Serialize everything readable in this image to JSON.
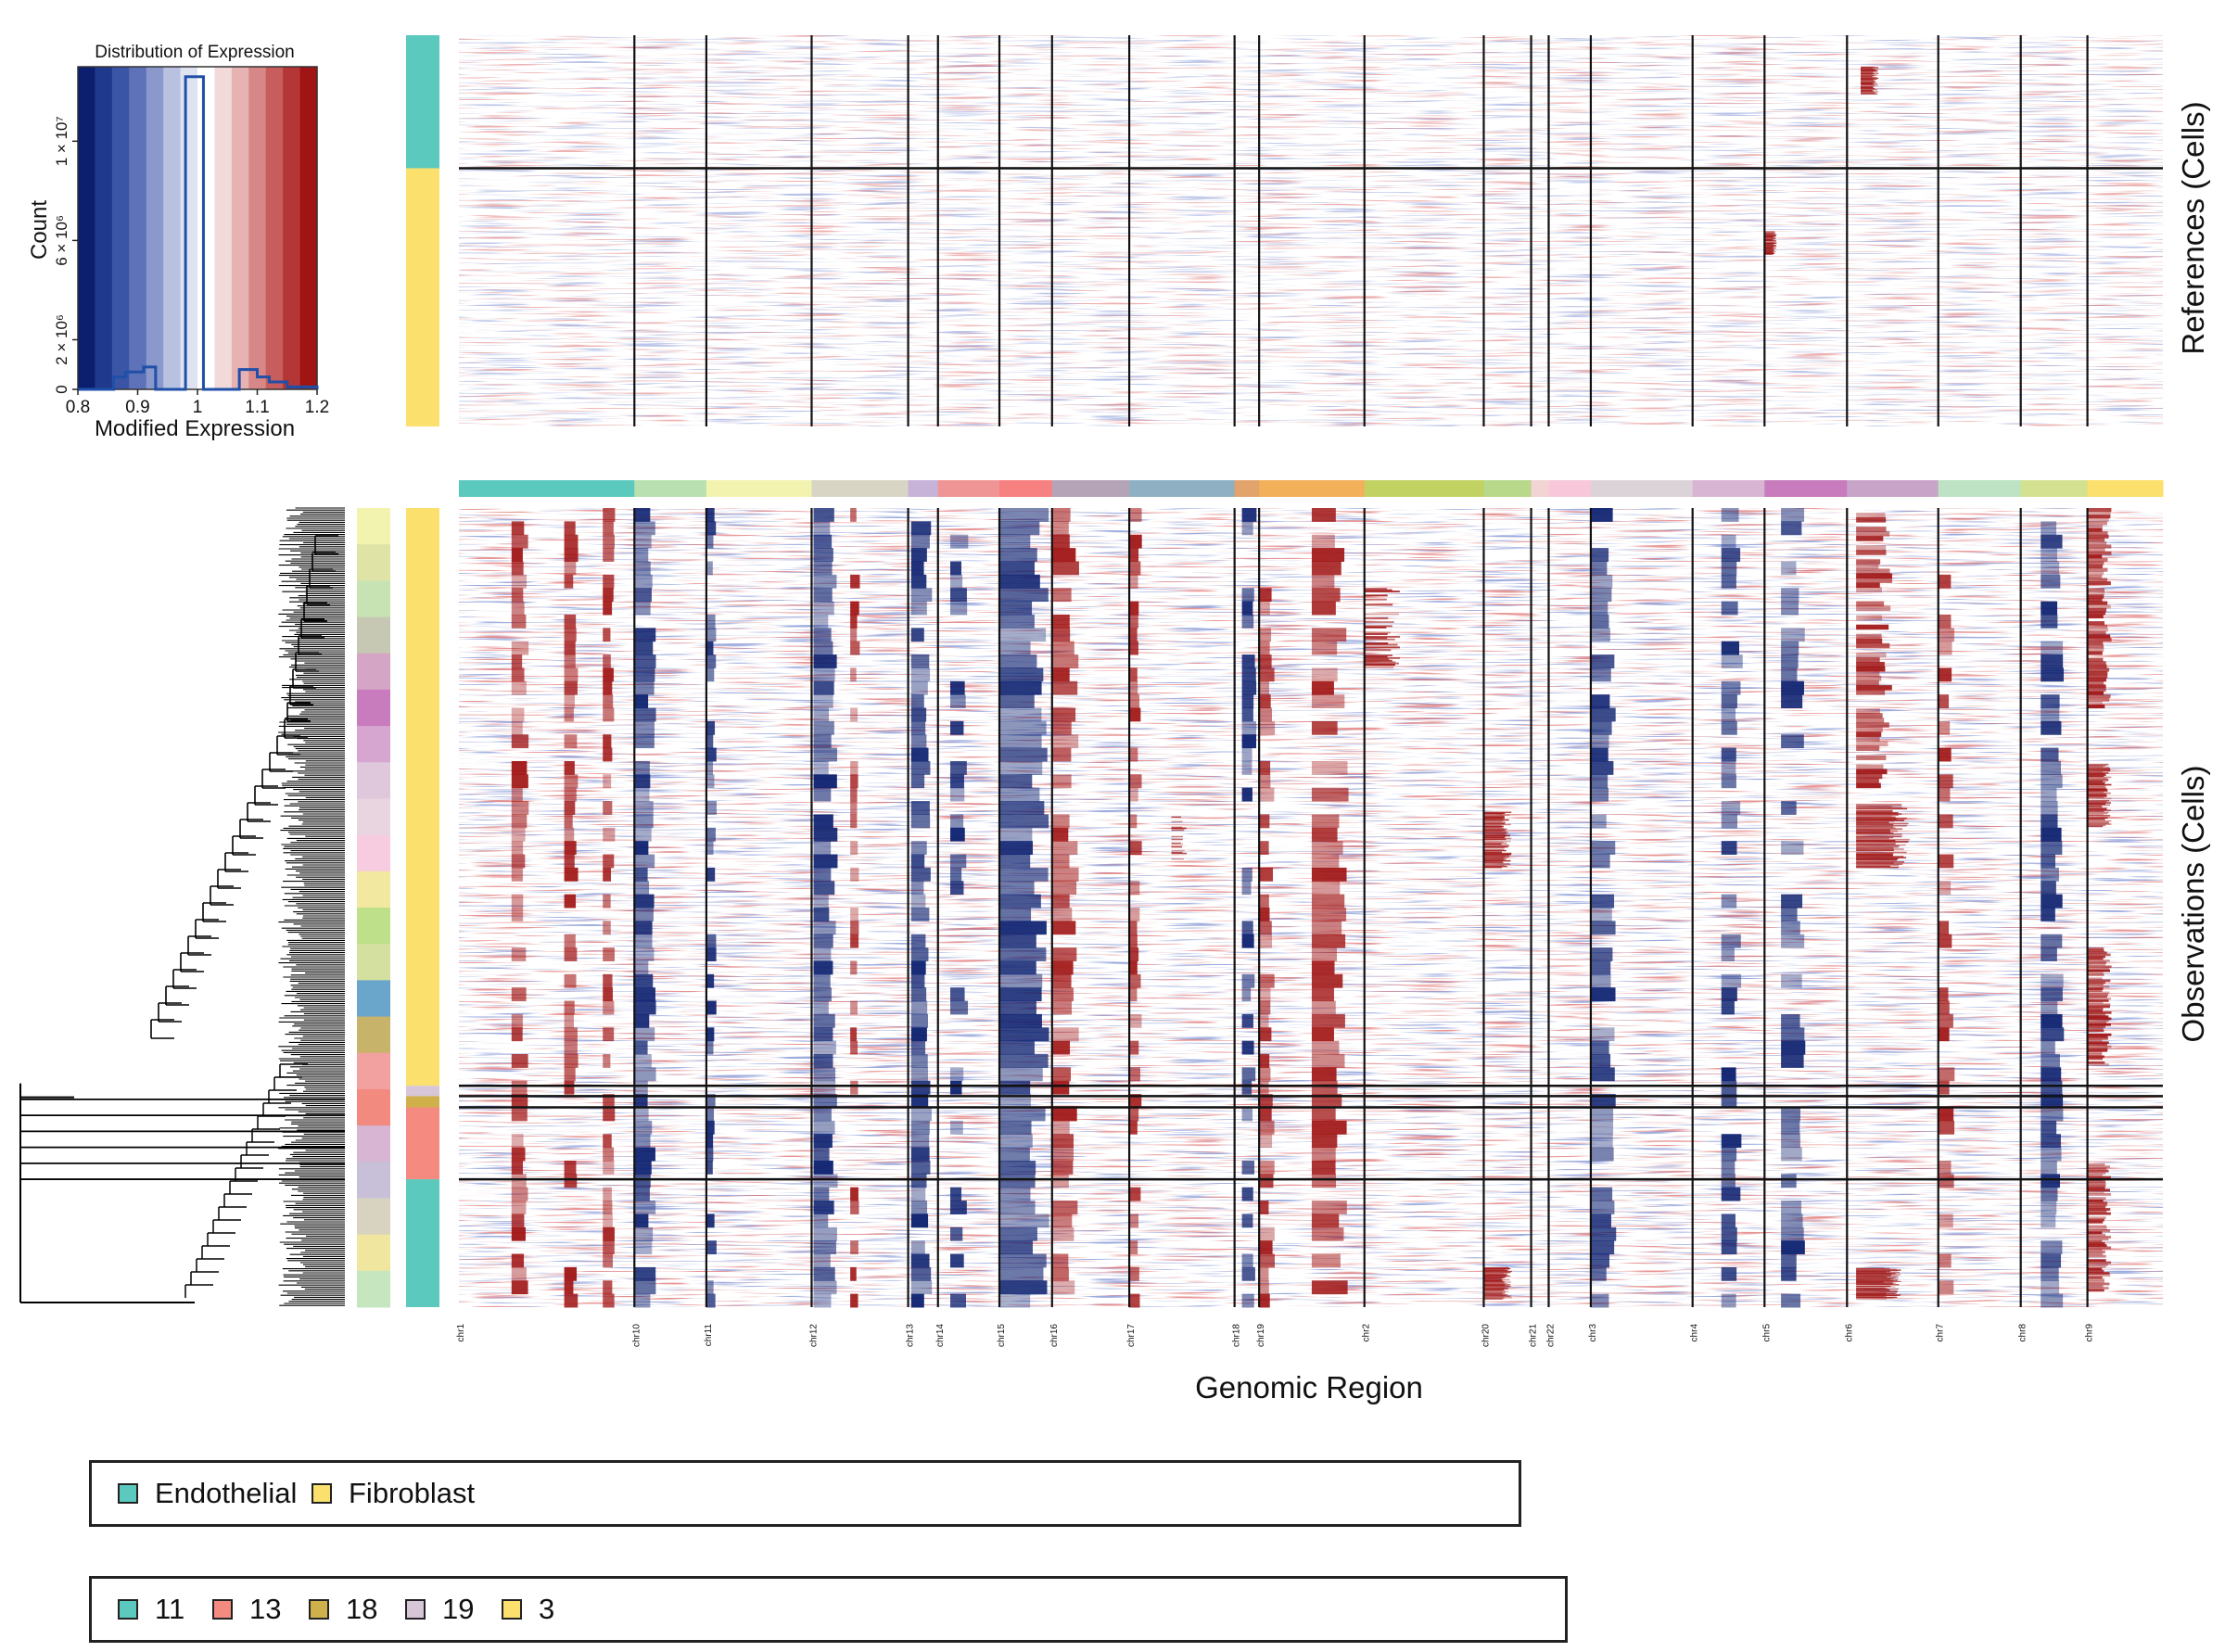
{
  "colors": {
    "low": "#0b1f6e",
    "mid": "#ffffff",
    "high": "#a01414",
    "line": "#111111",
    "inset_hist": "#1f4fa8"
  },
  "chart_data": [
    {
      "type": "histogram",
      "title": "Distribution of Expression",
      "xlabel": "Modified Expression",
      "ylabel": "Count",
      "xlim": [
        0.8,
        1.2
      ],
      "x_ticks": [
        "0.8",
        "0.9",
        "1",
        "1.1",
        "1.2"
      ],
      "y_ticks": [
        "0",
        "2 × 10⁶",
        "6 × 10⁶",
        "1 × 10⁷"
      ],
      "ylim": [
        0,
        13000000
      ],
      "bins": [
        {
          "x0": 0.8,
          "x1": 0.86,
          "count": 0
        },
        {
          "x0": 0.86,
          "x1": 0.88,
          "count": 500000
        },
        {
          "x0": 0.88,
          "x1": 0.91,
          "count": 700000
        },
        {
          "x0": 0.91,
          "x1": 0.93,
          "count": 900000
        },
        {
          "x0": 0.93,
          "x1": 0.98,
          "count": 0
        },
        {
          "x0": 0.98,
          "x1": 1.01,
          "count": 12600000
        },
        {
          "x0": 1.01,
          "x1": 1.07,
          "count": 0
        },
        {
          "x0": 1.07,
          "x1": 1.1,
          "count": 800000
        },
        {
          "x0": 1.1,
          "x1": 1.12,
          "count": 500000
        },
        {
          "x0": 1.12,
          "x1": 1.15,
          "count": 300000
        },
        {
          "x0": 1.15,
          "x1": 1.2,
          "count": 100000
        }
      ],
      "colorbar_stops": [
        "#0b1f6e",
        "#1f3a8c",
        "#3b55a6",
        "#5d72b8",
        "#8a98cc",
        "#b9c1e0",
        "#dfe3f1",
        "#ffffff",
        "#f3dada",
        "#e6b2b2",
        "#d78787",
        "#c75d5d",
        "#b53636",
        "#a01414"
      ]
    },
    {
      "type": "heatmap",
      "xlabel": "Genomic Region",
      "ylabel_references": "References (Cells)",
      "ylabel_observations": "Observations (Cells)",
      "chromosomes": [
        {
          "name": "chr1",
          "width": 1.0,
          "color": "#5cc9be"
        },
        {
          "name": "chr10",
          "width": 0.41,
          "color": "#b9e0b0"
        },
        {
          "name": "chr11",
          "width": 0.6,
          "color": "#f3f3b0"
        },
        {
          "name": "chr12",
          "width": 0.55,
          "color": "#d8d5c5"
        },
        {
          "name": "chr13",
          "width": 0.17,
          "color": "#c8b3d8"
        },
        {
          "name": "chr14",
          "width": 0.35,
          "color": "#f09595"
        },
        {
          "name": "chr15",
          "width": 0.3,
          "color": "#f78080"
        },
        {
          "name": "chr16",
          "width": 0.44,
          "color": "#b5a3b8"
        },
        {
          "name": "chr17",
          "width": 0.6,
          "color": "#8fb0c2"
        },
        {
          "name": "chr18",
          "width": 0.14,
          "color": "#e3a36c"
        },
        {
          "name": "chr19",
          "width": 0.6,
          "color": "#f3b05a"
        },
        {
          "name": "chr2",
          "width": 0.68,
          "color": "#c2d262"
        },
        {
          "name": "chr20",
          "width": 0.27,
          "color": "#b8d88a"
        },
        {
          "name": "chr21",
          "width": 0.1,
          "color": "#f2d4d4"
        },
        {
          "name": "chr22",
          "width": 0.24,
          "color": "#f8c8da"
        },
        {
          "name": "chr3",
          "width": 0.58,
          "color": "#dcd3d8"
        },
        {
          "name": "chr4",
          "width": 0.41,
          "color": "#d7b5d3"
        },
        {
          "name": "chr5",
          "width": 0.47,
          "color": "#c87bbd"
        },
        {
          "name": "chr6",
          "width": 0.52,
          "color": "#c8a5c8"
        },
        {
          "name": "chr7",
          "width": 0.47,
          "color": "#bde2c4"
        },
        {
          "name": "chr8",
          "width": 0.38,
          "color": "#d4e190"
        },
        {
          "name": "chr9",
          "width": 0.43,
          "color": "#fbe06e"
        }
      ],
      "reference_groups": [
        {
          "label": "Endothelial",
          "fraction": 0.34,
          "color": "#5cc9be"
        },
        {
          "label": "Fibroblast",
          "fraction": 0.66,
          "color": "#fbe06e"
        }
      ],
      "observation_groups": [
        {
          "label": "3",
          "fraction": 0.723,
          "color": "#fbe06e"
        },
        {
          "label": "19",
          "fraction": 0.013,
          "color": "#d7c6d8"
        },
        {
          "label": "18",
          "fraction": 0.014,
          "color": "#cfb04a"
        },
        {
          "label": "13",
          "fraction": 0.09,
          "color": "#f48a80"
        },
        {
          "label": "11",
          "fraction": 0.16,
          "color": "#5cc9be"
        }
      ],
      "subcluster_colors": [
        "#f3f3b0",
        "#dfe3a5",
        "#c8e3b3",
        "#c6c8b3",
        "#d4a5c4",
        "#c87bbd",
        "#d6a6d0",
        "#e0c8dc",
        "#e8d5e0",
        "#f7cbe0",
        "#f3e8a0",
        "#bfe08a",
        "#d4e0a0",
        "#6aa5cc",
        "#c8b36a",
        "#f3a0a0",
        "#f28a80",
        "#d7b5d3",
        "#c8c0d8",
        "#d7d3c0",
        "#f0e6a0",
        "#c6e6c0"
      ]
    }
  ],
  "legends": [
    {
      "items": [
        {
          "label": "Endothelial",
          "color": "#5cc9be"
        },
        {
          "label": "Fibroblast",
          "color": "#fbe06e"
        }
      ]
    },
    {
      "items": [
        {
          "label": "11",
          "color": "#5cc9be"
        },
        {
          "label": "13",
          "color": "#f48a80"
        },
        {
          "label": "18",
          "color": "#cfb04a"
        },
        {
          "label": "19",
          "color": "#d7c6d8"
        },
        {
          "label": "3",
          "color": "#fbe06e"
        }
      ]
    }
  ]
}
